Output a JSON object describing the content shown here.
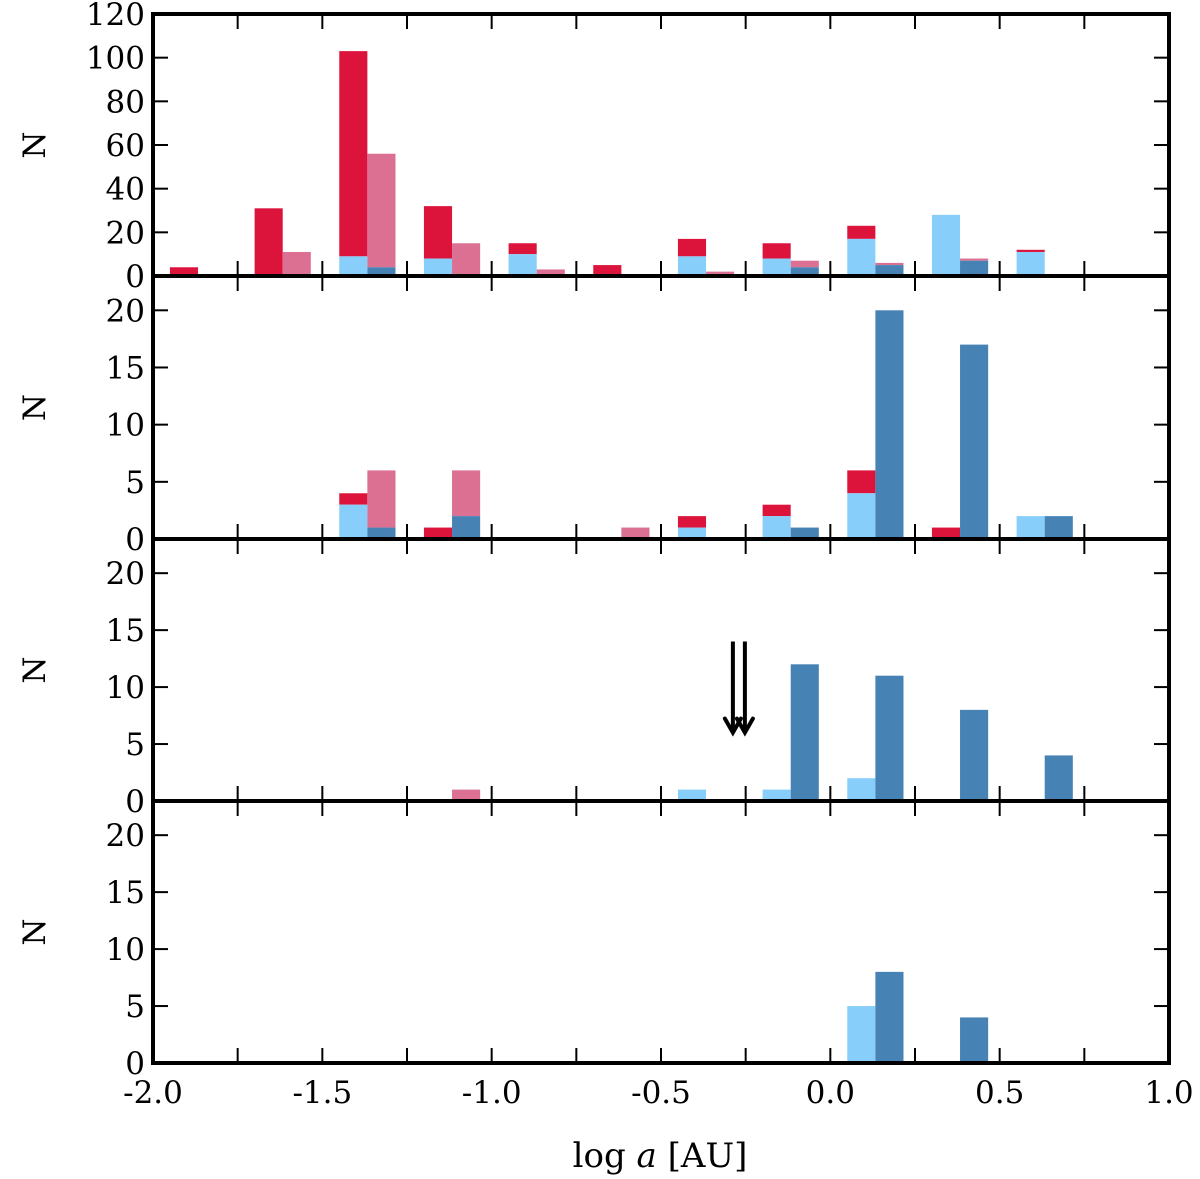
{
  "chart_data": {
    "type": "bar",
    "layout": "four vertically stacked stacked-bar histogram panels sharing the x axis",
    "xlabel": "log a [AU]",
    "xlabel_parts": {
      "log": "log",
      "var": "a",
      "unit": "[AU]"
    },
    "xlim": [
      -2.0,
      1.0
    ],
    "xticks": [
      -2.0,
      -1.5,
      -1.0,
      -0.5,
      0.0,
      0.5,
      1.0
    ],
    "xtick_labels": [
      "-2.0",
      "-1.5",
      "-1.0",
      "-0.5",
      "0.0",
      "0.5",
      "1.0"
    ],
    "bin_width": 0.083,
    "bin_starts": [
      -1.95,
      -1.7,
      -1.45,
      -1.2,
      -0.95,
      -0.7,
      -0.45,
      -0.2,
      0.05,
      0.3,
      0.55
    ],
    "colors": {
      "crimson": "#DC143C",
      "pink": "#DB7093",
      "light_blue": "#87CEFA",
      "steel_blue": "#4682B4",
      "axis": "#000000"
    },
    "panels": [
      {
        "ylabel": "N",
        "ylim": [
          0,
          120
        ],
        "yticks": [
          0,
          20,
          40,
          60,
          80,
          100,
          120
        ],
        "bars": [
          {
            "x": -1.95,
            "blue": 0,
            "top": 4,
            "blue_color": "light_blue",
            "top_color": "crimson"
          },
          {
            "x": -1.7,
            "blue": 0,
            "top": 31,
            "blue_color": "light_blue",
            "top_color": "crimson"
          },
          {
            "x": -1.617,
            "blue": 0,
            "top": 11,
            "blue_color": "steel_blue",
            "top_color": "pink"
          },
          {
            "x": -1.45,
            "blue": 9,
            "top": 103,
            "blue_color": "light_blue",
            "top_color": "crimson"
          },
          {
            "x": -1.367,
            "blue": 4,
            "top": 56,
            "blue_color": "steel_blue",
            "top_color": "pink"
          },
          {
            "x": -1.2,
            "blue": 8,
            "top": 32,
            "blue_color": "light_blue",
            "top_color": "crimson"
          },
          {
            "x": -1.117,
            "blue": 0,
            "top": 15,
            "blue_color": "steel_blue",
            "top_color": "pink"
          },
          {
            "x": -0.95,
            "blue": 10,
            "top": 15,
            "blue_color": "light_blue",
            "top_color": "crimson"
          },
          {
            "x": -0.867,
            "blue": 0,
            "top": 3,
            "blue_color": "steel_blue",
            "top_color": "pink"
          },
          {
            "x": -0.7,
            "blue": 0,
            "top": 5,
            "blue_color": "light_blue",
            "top_color": "crimson"
          },
          {
            "x": -0.45,
            "blue": 9,
            "top": 17,
            "blue_color": "light_blue",
            "top_color": "crimson"
          },
          {
            "x": -0.367,
            "blue": 0,
            "top": 2,
            "blue_color": "steel_blue",
            "top_color": "pink"
          },
          {
            "x": -0.2,
            "blue": 8,
            "top": 15,
            "blue_color": "light_blue",
            "top_color": "crimson"
          },
          {
            "x": -0.117,
            "blue": 4,
            "top": 7,
            "blue_color": "steel_blue",
            "top_color": "pink"
          },
          {
            "x": 0.05,
            "blue": 17,
            "top": 23,
            "blue_color": "light_blue",
            "top_color": "crimson"
          },
          {
            "x": 0.133,
            "blue": 5,
            "top": 6,
            "blue_color": "steel_blue",
            "top_color": "pink"
          },
          {
            "x": 0.3,
            "blue": 28,
            "top": 28,
            "blue_color": "light_blue",
            "top_color": "crimson"
          },
          {
            "x": 0.383,
            "blue": 7,
            "top": 8,
            "blue_color": "steel_blue",
            "top_color": "pink"
          },
          {
            "x": 0.55,
            "blue": 11,
            "top": 12,
            "blue_color": "light_blue",
            "top_color": "crimson"
          }
        ]
      },
      {
        "ylabel": "N",
        "ylim": [
          0,
          23
        ],
        "yticks": [
          0,
          5,
          10,
          15,
          20
        ],
        "bars": [
          {
            "x": -1.45,
            "blue": 3,
            "top": 4,
            "blue_color": "light_blue",
            "top_color": "crimson"
          },
          {
            "x": -1.367,
            "blue": 1,
            "top": 6,
            "blue_color": "steel_blue",
            "top_color": "pink"
          },
          {
            "x": -1.2,
            "blue": 0,
            "top": 1,
            "blue_color": "light_blue",
            "top_color": "crimson"
          },
          {
            "x": -1.117,
            "blue": 2,
            "top": 6,
            "blue_color": "steel_blue",
            "top_color": "pink"
          },
          {
            "x": -0.617,
            "blue": 0,
            "top": 1,
            "blue_color": "steel_blue",
            "top_color": "pink"
          },
          {
            "x": -0.45,
            "blue": 1,
            "top": 2,
            "blue_color": "light_blue",
            "top_color": "crimson"
          },
          {
            "x": -0.2,
            "blue": 2,
            "top": 3,
            "blue_color": "light_blue",
            "top_color": "crimson"
          },
          {
            "x": -0.117,
            "blue": 1,
            "top": 1,
            "blue_color": "steel_blue",
            "top_color": "pink"
          },
          {
            "x": 0.05,
            "blue": 4,
            "top": 6,
            "blue_color": "light_blue",
            "top_color": "crimson"
          },
          {
            "x": 0.133,
            "blue": 20,
            "top": 20,
            "blue_color": "steel_blue",
            "top_color": "pink"
          },
          {
            "x": 0.3,
            "blue": 0,
            "top": 1,
            "blue_color": "light_blue",
            "top_color": "crimson"
          },
          {
            "x": 0.383,
            "blue": 17,
            "top": 17,
            "blue_color": "steel_blue",
            "top_color": "pink"
          },
          {
            "x": 0.55,
            "blue": 2,
            "top": 2,
            "blue_color": "light_blue",
            "top_color": "crimson"
          },
          {
            "x": 0.633,
            "blue": 2,
            "top": 2,
            "blue_color": "steel_blue",
            "top_color": "pink"
          }
        ]
      },
      {
        "ylabel": "N",
        "ylim": [
          0,
          23
        ],
        "yticks": [
          0,
          5,
          10,
          15,
          20
        ],
        "bars": [
          {
            "x": -1.117,
            "blue": 0,
            "top": 1,
            "blue_color": "steel_blue",
            "top_color": "pink"
          },
          {
            "x": -0.45,
            "blue": 1,
            "top": 1,
            "blue_color": "light_blue",
            "top_color": "crimson"
          },
          {
            "x": -0.2,
            "blue": 1,
            "top": 1,
            "blue_color": "light_blue",
            "top_color": "crimson"
          },
          {
            "x": -0.117,
            "blue": 12,
            "top": 12,
            "blue_color": "steel_blue",
            "top_color": "pink"
          },
          {
            "x": 0.05,
            "blue": 2,
            "top": 2,
            "blue_color": "light_blue",
            "top_color": "crimson"
          },
          {
            "x": 0.133,
            "blue": 11,
            "top": 11,
            "blue_color": "steel_blue",
            "top_color": "pink"
          },
          {
            "x": 0.383,
            "blue": 8,
            "top": 8,
            "blue_color": "steel_blue",
            "top_color": "pink"
          },
          {
            "x": 0.633,
            "blue": 4,
            "top": 4,
            "blue_color": "steel_blue",
            "top_color": "pink"
          }
        ],
        "annotations": [
          {
            "type": "double-down-arrow",
            "x": -0.27,
            "y_top": 14,
            "y_tip": 6
          }
        ]
      },
      {
        "ylabel": "N",
        "ylim": [
          0,
          23
        ],
        "yticks": [
          0,
          5,
          10,
          15,
          20
        ],
        "bars": [
          {
            "x": 0.05,
            "blue": 5,
            "top": 5,
            "blue_color": "light_blue",
            "top_color": "crimson"
          },
          {
            "x": 0.133,
            "blue": 8,
            "top": 8,
            "blue_color": "steel_blue",
            "top_color": "pink"
          },
          {
            "x": 0.383,
            "blue": 4,
            "top": 4,
            "blue_color": "steel_blue",
            "top_color": "pink"
          }
        ]
      }
    ]
  }
}
